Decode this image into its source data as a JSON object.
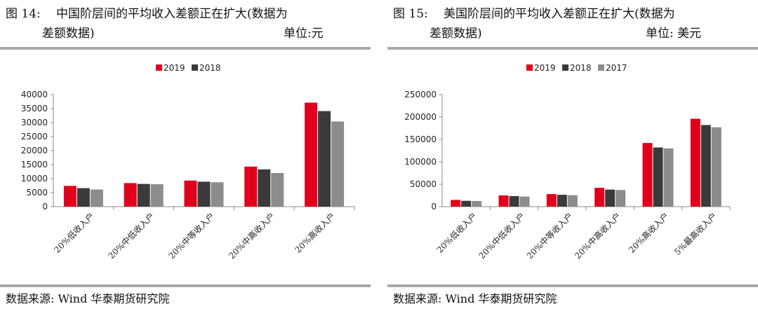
{
  "charts": [
    {
      "title_prefix": "图 14:",
      "title_line1": "中国阶层间的平均收入差额正在扩大(数据为",
      "title_line2": "差额数据)",
      "unit": "单位:元",
      "source": "数据来源: Wind  华泰期货研究院"
    },
    {
      "title_prefix": "图 15:",
      "title_line1": "美国阶层间的平均收入差额正在扩大(数据为",
      "title_line2": "差额数据)",
      "unit": "单位: 美元",
      "source": "数据来源: Wind  华泰期货研究院"
    }
  ],
  "series_colors": {
    "2019": "#e0001b",
    "2018": "#3a3a3a",
    "2017": "#8c8c8c"
  },
  "chart_data": [
    {
      "type": "bar",
      "categories": [
        "20%低收入户",
        "20%中低收入户",
        "20%中等收入户",
        "20%中高收入户",
        "20%高收入户"
      ],
      "series": [
        {
          "name": "2019",
          "values": [
            7400,
            8400,
            9300,
            14300,
            37100
          ]
        },
        {
          "name": "2018",
          "values": [
            6600,
            8100,
            8900,
            13300,
            34100
          ]
        },
        {
          "name": "2017",
          "values": [
            6100,
            8000,
            8700,
            12000,
            30400
          ]
        }
      ],
      "legend_series": [
        "2019",
        "2018"
      ],
      "ylim": [
        0,
        40000
      ],
      "yticks": [
        0,
        5000,
        10000,
        15000,
        20000,
        25000,
        30000,
        35000,
        40000
      ],
      "legend": "top"
    },
    {
      "type": "bar",
      "categories": [
        "20%低收入户",
        "20%中低收入户",
        "20%中等收入户",
        "20%中高收入户",
        "20%高收入户",
        "5%最高收入户"
      ],
      "series": [
        {
          "name": "2019",
          "values": [
            15000,
            25000,
            28000,
            42000,
            142000,
            196000
          ]
        },
        {
          "name": "2018",
          "values": [
            13000,
            23500,
            26500,
            38000,
            132000,
            182000
          ]
        },
        {
          "name": "2017",
          "values": [
            12500,
            22500,
            25500,
            37000,
            130000,
            177000
          ]
        }
      ],
      "legend_series": [
        "2019",
        "2018",
        "2017"
      ],
      "ylim": [
        0,
        250000
      ],
      "yticks": [
        0,
        50000,
        100000,
        150000,
        200000,
        250000
      ],
      "legend": "top"
    }
  ]
}
